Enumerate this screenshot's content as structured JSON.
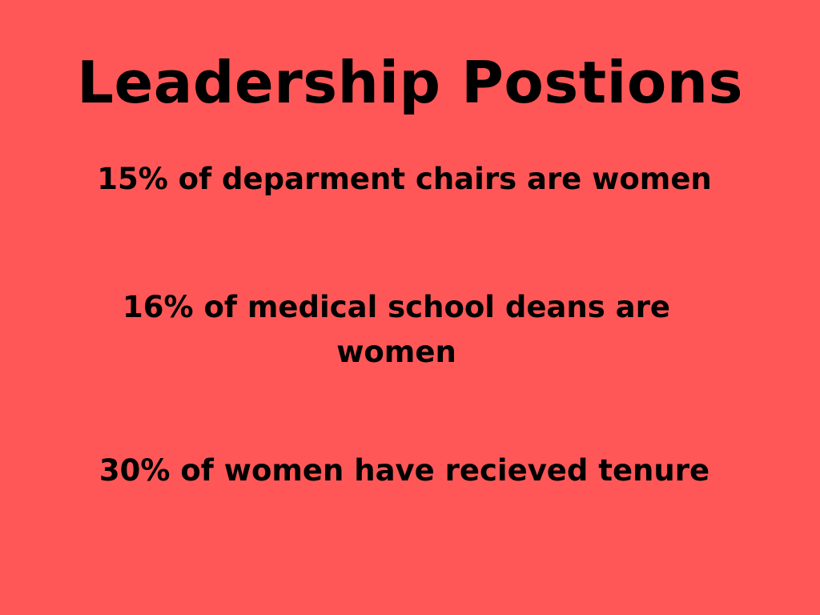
{
  "slide": {
    "background_color": "#FF5757",
    "title": "Leadership Postions",
    "stats": [
      "15% of deparment chairs are women",
      "16% of medical school deans are women",
      "30% of women have recieved tenure"
    ]
  }
}
